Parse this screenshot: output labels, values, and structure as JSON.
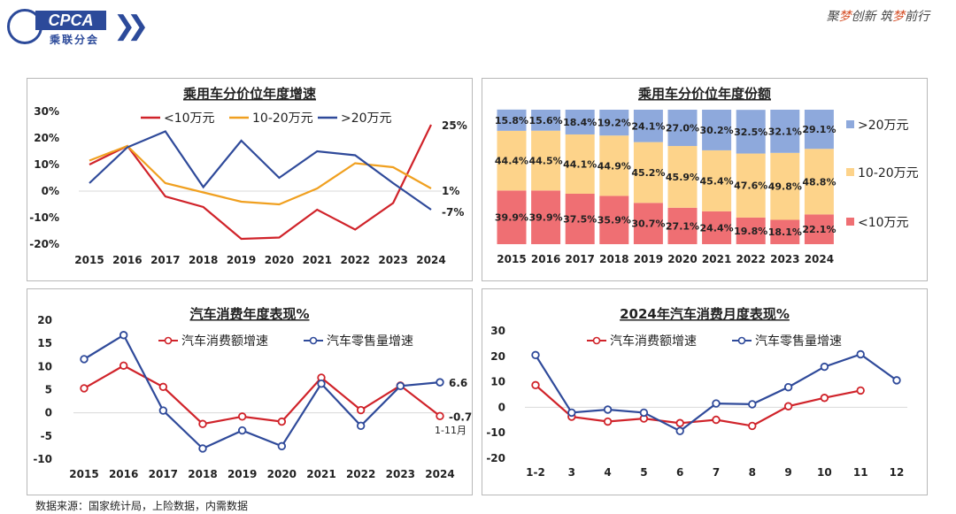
{
  "header": {
    "logo_text": "CPCA",
    "logo_sub": "乘联分会",
    "slogan_parts": [
      "聚",
      "梦",
      "创新 筑",
      "梦",
      "前行"
    ]
  },
  "footer": {
    "source": "数据来源：国家统计局，上险数据，内需数据"
  },
  "colors": {
    "red": "#d0232a",
    "orange": "#f0a020",
    "blue": "#2f4a9a",
    "bar_red": "#ef6f73",
    "bar_yellow": "#fdd38a",
    "bar_blue": "#8ea9dc"
  },
  "chart_data": [
    {
      "id": "growth",
      "type": "line",
      "title": "乘用车分价位年度增速",
      "categories": [
        "2015",
        "2016",
        "2017",
        "2018",
        "2019",
        "2020",
        "2021",
        "2022",
        "2023",
        "2024"
      ],
      "yticks": [
        "30%",
        "20%",
        "10%",
        "0%",
        "-10%",
        "-20%"
      ],
      "ylim": [
        -20,
        30
      ],
      "series": [
        {
          "name": "<10万元",
          "color": "red",
          "values": [
            10,
            17,
            -2,
            -6,
            -18,
            -17.5,
            -7,
            -14.5,
            -4.5,
            25
          ],
          "end_label": "25%"
        },
        {
          "name": "10-20万元",
          "color": "orange",
          "values": [
            11.5,
            17,
            3,
            -0.5,
            -4,
            -5,
            1,
            10.5,
            9,
            1
          ],
          "end_label": "1%"
        },
        {
          "name": ">20万元",
          "color": "blue",
          "values": [
            3,
            16.5,
            22.5,
            1.5,
            19,
            5,
            15,
            13.5,
            3,
            -7
          ],
          "end_label": "-7%"
        }
      ]
    },
    {
      "id": "share",
      "type": "bar",
      "stacked": true,
      "title": "乘用车分价位年度份额",
      "categories": [
        "2015",
        "2016",
        "2017",
        "2018",
        "2019",
        "2020",
        "2021",
        "2022",
        "2023",
        "2024"
      ],
      "series": [
        {
          "name": "<10万元",
          "color": "bar_red",
          "values": [
            39.9,
            39.9,
            37.5,
            35.9,
            30.7,
            27.1,
            24.4,
            19.8,
            18.1,
            22.1
          ],
          "labels": [
            "39.9%",
            "39.9%",
            "37.5%",
            "35.9%",
            "30.7%",
            "27.1%",
            "24.4%",
            "19.8%",
            "18.1%",
            "22.1%"
          ]
        },
        {
          "name": "10-20万元",
          "color": "bar_yellow",
          "values": [
            44.4,
            44.5,
            44.1,
            44.9,
            45.2,
            45.9,
            45.4,
            47.6,
            49.8,
            48.8
          ],
          "labels": [
            "44.4%",
            "44.5%",
            "44.1%",
            "44.9%",
            "45.2%",
            "45.9%",
            "45.4%",
            "47.6%",
            "49.8%",
            "48.8%"
          ]
        },
        {
          "name": ">20万元",
          "color": "bar_blue",
          "values": [
            15.8,
            15.6,
            18.4,
            19.2,
            24.1,
            27.0,
            30.2,
            32.5,
            32.1,
            29.1
          ],
          "labels": [
            "15.8%",
            "15.6%",
            "18.4%",
            "19.2%",
            "24.1%",
            "27.0%",
            "30.2%",
            "32.5%",
            "32.1%",
            "29.1%"
          ]
        }
      ]
    },
    {
      "id": "annual",
      "type": "line",
      "title": "汽车消费年度表现%",
      "categories": [
        "2015",
        "2016",
        "2017",
        "2018",
        "2019",
        "2020",
        "2021",
        "2022",
        "2023",
        "2024"
      ],
      "yticks": [
        "20",
        "15",
        "10",
        "5",
        "0",
        "-5",
        "-10"
      ],
      "ylim": [
        -10,
        20
      ],
      "note": "1-11月",
      "series": [
        {
          "name": "汽车消费额增速",
          "color": "red",
          "values": [
            5.3,
            10.2,
            5.6,
            -2.4,
            -0.8,
            -1.9,
            7.6,
            0.6,
            5.9,
            -0.7
          ],
          "end_label": "-0.7"
        },
        {
          "name": "汽车零售量增速",
          "color": "blue",
          "values": [
            11.6,
            16.8,
            0.5,
            -7.7,
            -3.8,
            -7.2,
            6.3,
            -2.8,
            5.8,
            6.6
          ],
          "end_label": "6.6"
        }
      ]
    },
    {
      "id": "monthly",
      "type": "line",
      "title": "2024年汽车消费月度表现%",
      "categories": [
        "1-2",
        "3",
        "4",
        "5",
        "6",
        "7",
        "8",
        "9",
        "10",
        "11",
        "12"
      ],
      "yticks": [
        "30",
        "20",
        "10",
        "0",
        "-10",
        "-20"
      ],
      "ylim": [
        -20,
        30
      ],
      "series": [
        {
          "name": "汽车消费额增速",
          "color": "red",
          "values": [
            8.7,
            -3.7,
            -5.6,
            -4.4,
            -6.2,
            -4.9,
            -7.3,
            0.4,
            3.7,
            6.6,
            null
          ]
        },
        {
          "name": "汽车零售量增速",
          "color": "blue",
          "values": [
            20.5,
            -2.1,
            -0.9,
            -2.1,
            -9.3,
            1.5,
            1.2,
            7.9,
            15.9,
            20.8,
            10.6
          ]
        }
      ]
    }
  ]
}
